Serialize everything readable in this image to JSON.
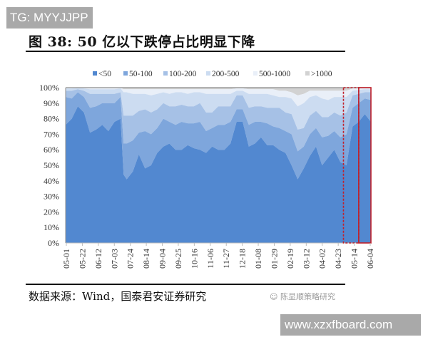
{
  "watermark_top": "TG: MYYJJPP",
  "watermark_bottom": "www.xzxfboard.com",
  "figure": {
    "title": "图 38:  50 亿以下跌停占比明显下降",
    "source": "数据来源：Wind，国泰君安证券研究",
    "brand": "陈显顺策略研究"
  },
  "chart_data": {
    "type": "area",
    "stacked": true,
    "percent_stacked": true,
    "title": "50亿以下跌停占比明显下降",
    "xlabel": "",
    "ylabel": "",
    "ylim": [
      0,
      100
    ],
    "y_ticks": [
      "0%",
      "10%",
      "20%",
      "30%",
      "40%",
      "50%",
      "60%",
      "70%",
      "80%",
      "90%",
      "100%"
    ],
    "x_ticks": [
      "05-01",
      "05-22",
      "06-12",
      "07-03",
      "07-24",
      "08-14",
      "09-04",
      "09-25",
      "10-16",
      "11-06",
      "11-27",
      "12-18",
      "01-08",
      "01-29",
      "02-19",
      "03-12",
      "04-02",
      "04-23",
      "05-14",
      "06-04"
    ],
    "legend_position": "top",
    "grid": false,
    "colors": [
      "#5288d0",
      "#7ea6dc",
      "#a6c1e6",
      "#ccdcf1",
      "#e9eff8",
      "#d2d2d2"
    ],
    "x": [
      0,
      2,
      4,
      6,
      8,
      10,
      12,
      14,
      16,
      18,
      19,
      20,
      22,
      24,
      26,
      28,
      30,
      32,
      34,
      36,
      38,
      40,
      42,
      44,
      46,
      48,
      50,
      52,
      54,
      56,
      58,
      60,
      62,
      64,
      66,
      68,
      70,
      72,
      74,
      76,
      78,
      80,
      82,
      84,
      86,
      88,
      90,
      92,
      94,
      96,
      98,
      100
    ],
    "series": [
      {
        "name": "<50",
        "values": [
          76,
          80,
          88,
          84,
          71,
          73,
          76,
          72,
          78,
          80,
          44,
          41,
          46,
          57,
          48,
          50,
          58,
          62,
          64,
          60,
          60,
          63,
          61,
          60,
          58,
          62,
          60,
          60,
          64,
          78,
          78,
          62,
          64,
          68,
          63,
          63,
          60,
          58,
          50,
          41,
          48,
          56,
          62,
          50,
          55,
          60,
          52,
          50,
          75,
          78,
          83,
          78
        ]
      },
      {
        "name": "50-100",
        "values": [
          18,
          13,
          9,
          10,
          16,
          15,
          14,
          18,
          12,
          14,
          20,
          23,
          20,
          14,
          24,
          20,
          16,
          18,
          14,
          16,
          18,
          14,
          16,
          18,
          14,
          12,
          16,
          16,
          14,
          8,
          8,
          14,
          14,
          10,
          14,
          12,
          14,
          14,
          20,
          18,
          14,
          14,
          12,
          18,
          14,
          12,
          16,
          20,
          12,
          12,
          10,
          14
        ]
      },
      {
        "name": "100-200",
        "values": [
          4,
          5,
          2,
          4,
          9,
          8,
          6,
          6,
          6,
          3,
          18,
          18,
          16,
          14,
          14,
          14,
          12,
          10,
          10,
          12,
          11,
          11,
          11,
          12,
          12,
          10,
          12,
          12,
          10,
          9,
          9,
          11,
          10,
          10,
          10,
          12,
          13,
          12,
          13,
          14,
          12,
          12,
          11,
          13,
          12,
          12,
          14,
          14,
          8,
          6,
          4,
          5
        ]
      },
      {
        "name": "200-500",
        "values": [
          1.5,
          1.5,
          0.8,
          1.5,
          3,
          3,
          3,
          3,
          3,
          2.5,
          15,
          15,
          14,
          11,
          10,
          11,
          10,
          7,
          8,
          9,
          8,
          8,
          9,
          7,
          12,
          12,
          8,
          8,
          8,
          3,
          3,
          9,
          8,
          8,
          9,
          8,
          7,
          10,
          10,
          15,
          16,
          12,
          10,
          12,
          11,
          10,
          12,
          10,
          3,
          2.5,
          2,
          2
        ]
      },
      {
        "name": "500-1000",
        "values": [
          0.5,
          0.5,
          0.2,
          0.5,
          1,
          1,
          1,
          1,
          1,
          0.5,
          2,
          2,
          3,
          3,
          3,
          4,
          3,
          2,
          3,
          2,
          2,
          3,
          2,
          2,
          3,
          3,
          3,
          3,
          3,
          1.5,
          1.5,
          3,
          3,
          3,
          3,
          4,
          4,
          4,
          4,
          7,
          6,
          4,
          3,
          5,
          6,
          4,
          4,
          4,
          1.5,
          1,
          0.7,
          0.7
        ]
      },
      {
        "name": ">1000",
        "values": [
          0,
          0,
          0,
          0,
          0,
          0,
          0,
          0,
          0,
          0,
          1,
          1,
          1,
          1,
          1,
          1,
          1,
          1,
          1,
          1,
          1,
          1,
          1,
          1,
          1,
          1,
          1,
          1,
          1,
          0.5,
          0.5,
          1,
          1,
          1,
          1,
          1,
          2,
          2,
          3,
          5,
          4,
          2,
          2,
          2,
          2,
          2,
          2,
          2,
          0.5,
          0.5,
          0.3,
          0.3
        ]
      }
    ],
    "highlights": [
      {
        "style": "dashed",
        "color": "#c0202a",
        "x_from": 91,
        "x_to": 96
      },
      {
        "style": "solid",
        "color": "#c0202a",
        "x_from": 96,
        "x_to": 100
      }
    ]
  }
}
